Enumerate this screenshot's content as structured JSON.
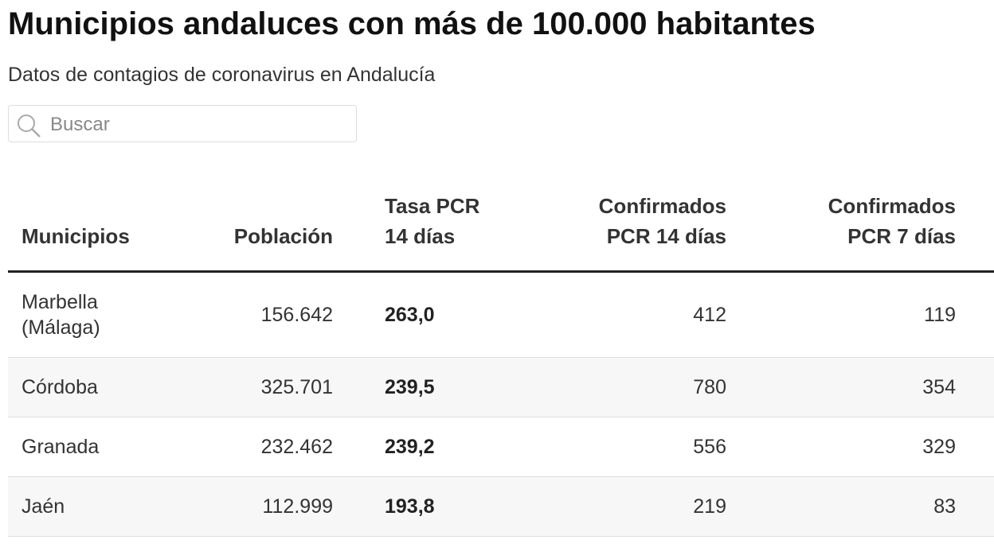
{
  "header": {
    "title": "Municipios andaluces con más de 100.000 habitantes",
    "subtitle": "Datos de contagios de coronavirus en Andalucía"
  },
  "search": {
    "placeholder": "Buscar"
  },
  "table": {
    "columns": [
      "Municipios",
      "Población",
      "Tasa PCR 14 días",
      "Confirmados PCR 14 días",
      "Confirmados PCR 7 días"
    ],
    "rows": [
      [
        "Marbella (Málaga)",
        "156.642",
        "263,0",
        "412",
        "119"
      ],
      [
        "Córdoba",
        "325.701",
        "239,5",
        "780",
        "354"
      ],
      [
        "Granada",
        "232.462",
        "239,2",
        "556",
        "329"
      ],
      [
        "Jaén",
        "112.999",
        "193,8",
        "219",
        "83"
      ]
    ]
  }
}
